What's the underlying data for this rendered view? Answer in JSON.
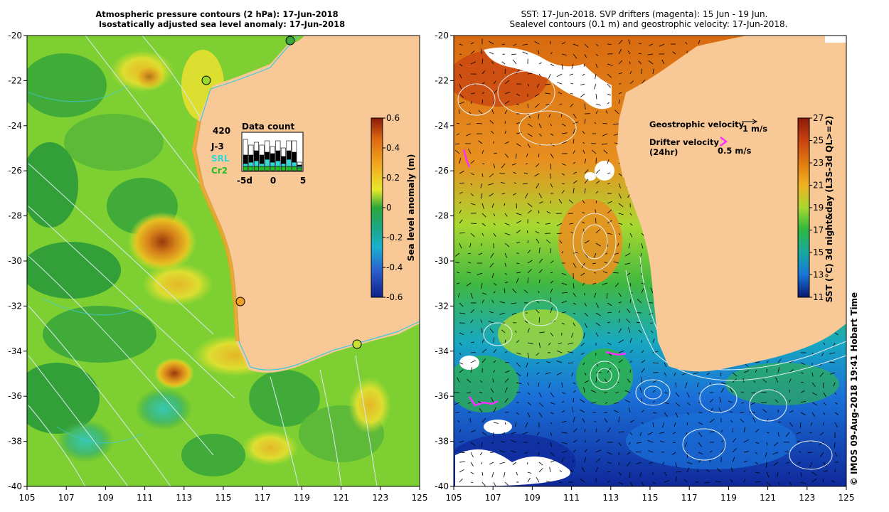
{
  "left_panel": {
    "title_line1": "Atmospheric pressure contours (2 hPa): 17-Jun-2018",
    "title_line2": "Isostatically adjusted sea level anomaly: 17-Jun-2018",
    "x_ticks": [
      "105",
      "107",
      "109",
      "111",
      "113",
      "115",
      "117",
      "119",
      "121",
      "123",
      "125"
    ],
    "y_ticks": [
      "-20",
      "-22",
      "-24",
      "-26",
      "-28",
      "-30",
      "-32",
      "-34",
      "-36",
      "-38",
      "-40"
    ],
    "colorbar_label": "Sea level anomaly (m)",
    "colorbar_ticks": [
      "0.6",
      "0.4",
      "0.2",
      "0",
      "-0.2",
      "-0.4",
      "-0.6"
    ],
    "colorbar_colors": [
      "#8a1a0a",
      "#e06a10",
      "#f2b020",
      "#e8e82a",
      "#9ad82a",
      "#2aa83a",
      "#1aa88a",
      "#18b0d0",
      "#2a60d0",
      "#10208a"
    ],
    "inset": {
      "title": "Data count",
      "count_label": "420",
      "legend": [
        {
          "name": "J-3",
          "color": "#000000"
        },
        {
          "name": "SRL",
          "color": "#30d8d8"
        },
        {
          "name": "Cr2",
          "color": "#20c020"
        }
      ],
      "x_ticks": [
        "-5d",
        "0",
        "5"
      ]
    }
  },
  "right_panel": {
    "title_line1": "SST: 17-Jun-2018. SVP drifters (magenta): 15 Jun - 19 Jun.",
    "title_line2": "Sealevel contours (0.1 m) and geostrophic velocity: 17-Jun-2018.",
    "x_ticks": [
      "105",
      "107",
      "109",
      "111",
      "113",
      "115",
      "117",
      "119",
      "121",
      "123",
      "125"
    ],
    "y_ticks": [
      "-20",
      "-22",
      "-24",
      "-26",
      "-28",
      "-30",
      "-32",
      "-34",
      "-36",
      "-38",
      "-40"
    ],
    "legend_geo_label": "Geostrophic velocity",
    "legend_geo_value": "1 m/s",
    "legend_drift_label": "Drifter velocity",
    "legend_drift_sub": "(24hr)",
    "legend_drift_value": "0.5 m/s",
    "colorbar_label": "SST (°C) 3d night&day (L3S-3d QL>=2)",
    "colorbar_ticks": [
      "27",
      "25",
      "23",
      "21",
      "19",
      "17",
      "15",
      "13",
      "11"
    ],
    "colorbar_colors": [
      "#8a1a0a",
      "#c84010",
      "#e07a10",
      "#f0b020",
      "#e8e030",
      "#a8d830",
      "#30b840",
      "#18a8a0",
      "#1878d8",
      "#1030a0",
      "#0a1870"
    ]
  },
  "footer_note": "© IMOS 09-Aug-2018 19:41 Hobart Time",
  "colors": {
    "land": "#f8c896",
    "coast_contour": "#40c8e0",
    "drifter": "#ff30ff"
  }
}
